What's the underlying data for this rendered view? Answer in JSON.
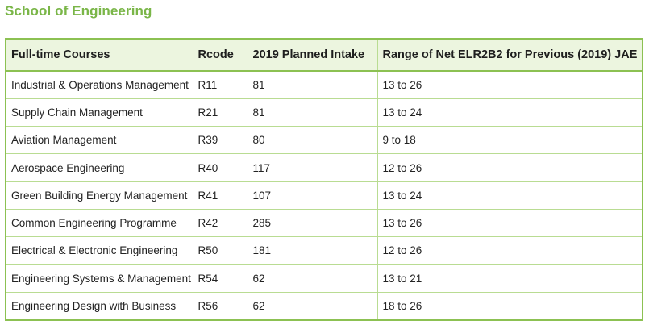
{
  "section": {
    "title": "School of Engineering"
  },
  "table": {
    "headers": [
      "Full-time Courses",
      "Rcode",
      "2019 Planned Intake",
      "Range of Net ELR2B2 for Previous (2019) JAE"
    ],
    "rows": [
      [
        "Industrial & Operations Management",
        "R11",
        "81",
        "13 to 26"
      ],
      [
        "Supply Chain Management",
        "R21",
        "81",
        "13 to 24"
      ],
      [
        "Aviation Management",
        "R39",
        "80",
        "9 to 18"
      ],
      [
        "Aerospace Engineering",
        "R40",
        "117",
        "12 to 26"
      ],
      [
        "Green Building Energy Management",
        "R41",
        "107",
        "13 to 24"
      ],
      [
        "Common Engineering Programme",
        "R42",
        "285",
        "13 to 26"
      ],
      [
        "Electrical & Electronic Engineering",
        "R50",
        "181",
        "12 to 26"
      ],
      [
        "Engineering Systems & Management",
        "R54",
        "62",
        "13 to 21"
      ],
      [
        "Engineering Design with Business",
        "R56",
        "62",
        "18 to 26"
      ]
    ]
  },
  "colors": {
    "title": "#7ab648",
    "border": "#8cc152",
    "header_bg": "#ecf5df"
  }
}
